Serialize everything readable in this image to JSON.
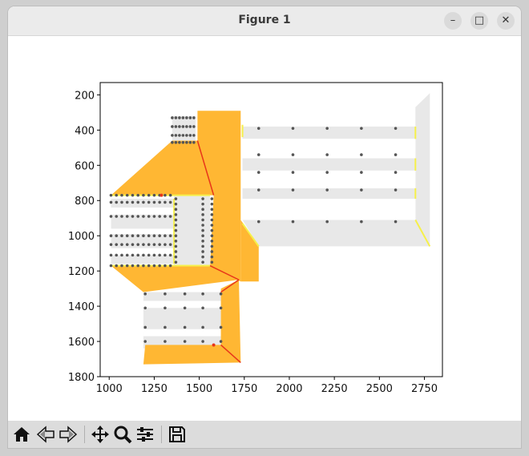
{
  "window": {
    "title": "Figure 1",
    "buttons": {
      "minimize": "–",
      "maximize": "□",
      "close": "✕"
    }
  },
  "toolbar": {
    "icons": [
      "home-icon",
      "back-arrow-icon",
      "forward-arrow-icon",
      "pan-icon",
      "zoom-icon",
      "configure-subplots-icon",
      "save-icon"
    ]
  },
  "colors": {
    "orange": "#FFB733",
    "red": "#E8351A",
    "yellow": "#F6F04A",
    "grey": "#E8E8E8",
    "dot": "#555555"
  },
  "chart_data": {
    "type": "scatter",
    "title": "",
    "xlabel": "",
    "ylabel": "",
    "xlim": [
      950,
      2850
    ],
    "ylim": [
      1800,
      130
    ],
    "y_inverted": true,
    "grid": false,
    "xticks": [
      1000,
      1250,
      1500,
      1750,
      2000,
      2250,
      2500,
      2750
    ],
    "yticks": [
      200,
      400,
      600,
      800,
      1000,
      1200,
      1400,
      1600,
      1800
    ],
    "xtick_labels": [
      "1000",
      "1250",
      "1500",
      "1750",
      "2000",
      "2250",
      "2500",
      "2750"
    ],
    "ytick_labels": [
      "200",
      "400",
      "600",
      "800",
      "1000",
      "1200",
      "1400",
      "1600",
      "1800"
    ],
    "grey_regions": [
      [
        [
          1740,
          380
        ],
        [
          2700,
          380
        ],
        [
          2700,
          450
        ],
        [
          1740,
          450
        ]
      ],
      [
        [
          1740,
          560
        ],
        [
          2700,
          560
        ],
        [
          2700,
          630
        ],
        [
          1740,
          630
        ]
      ],
      [
        [
          1740,
          730
        ],
        [
          2700,
          730
        ],
        [
          2700,
          790
        ],
        [
          1740,
          790
        ]
      ],
      [
        [
          1740,
          910
        ],
        [
          2700,
          910
        ],
        [
          2780,
          1060
        ],
        [
          1830,
          1060
        ]
      ],
      [
        [
          2700,
          270
        ],
        [
          2780,
          190
        ],
        [
          2780,
          1060
        ],
        [
          2700,
          910
        ]
      ],
      [
        [
          1010,
          790
        ],
        [
          1360,
          790
        ],
        [
          1360,
          1160
        ],
        [
          1010,
          1160
        ]
      ],
      [
        [
          1360,
          760
        ],
        [
          1560,
          760
        ],
        [
          1560,
          1170
        ],
        [
          1360,
          1170
        ]
      ],
      [
        [
          1350,
          320
        ],
        [
          1480,
          320
        ],
        [
          1480,
          460
        ],
        [
          1350,
          460
        ]
      ],
      [
        [
          1190,
          1320
        ],
        [
          1620,
          1320
        ],
        [
          1620,
          1640
        ],
        [
          1190,
          1640
        ]
      ]
    ],
    "white_lanes": [
      [
        [
          1010,
          840
        ],
        [
          1360,
          840
        ],
        [
          1360,
          880
        ],
        [
          1010,
          880
        ]
      ],
      [
        [
          1010,
          960
        ],
        [
          1360,
          960
        ],
        [
          1360,
          990
        ],
        [
          1010,
          990
        ]
      ],
      [
        [
          1010,
          1070
        ],
        [
          1360,
          1070
        ],
        [
          1360,
          1110
        ],
        [
          1010,
          1110
        ]
      ],
      [
        [
          1190,
          1370
        ],
        [
          1620,
          1370
        ],
        [
          1620,
          1410
        ],
        [
          1190,
          1410
        ]
      ],
      [
        [
          1190,
          1530
        ],
        [
          1620,
          1530
        ],
        [
          1620,
          1570
        ],
        [
          1190,
          1570
        ]
      ],
      [
        [
          1740,
          450
        ],
        [
          2700,
          450
        ],
        [
          2700,
          560
        ],
        [
          1740,
          560
        ]
      ],
      [
        [
          1740,
          630
        ],
        [
          2700,
          630
        ],
        [
          2700,
          730
        ],
        [
          1740,
          730
        ]
      ],
      [
        [
          1740,
          790
        ],
        [
          2700,
          790
        ],
        [
          2700,
          910
        ],
        [
          1740,
          910
        ]
      ]
    ],
    "orange_regions": [
      [
        [
          1010,
          770
        ],
        [
          1350,
          460
        ],
        [
          1490,
          460
        ],
        [
          1580,
          770
        ]
      ],
      [
        [
          1490,
          290
        ],
        [
          1730,
          290
        ],
        [
          1730,
          1260
        ],
        [
          1560,
          1170
        ],
        [
          1580,
          770
        ],
        [
          1490,
          460
        ]
      ],
      [
        [
          1730,
          910
        ],
        [
          1830,
          1060
        ],
        [
          1830,
          1260
        ],
        [
          1730,
          1260
        ]
      ],
      [
        [
          1010,
          1170
        ],
        [
          1560,
          1170
        ],
        [
          1720,
          1250
        ],
        [
          1190,
          1320
        ]
      ],
      [
        [
          1620,
          1300
        ],
        [
          1720,
          1250
        ],
        [
          1730,
          1720
        ],
        [
          1620,
          1620
        ]
      ],
      [
        [
          1200,
          1620
        ],
        [
          1620,
          1620
        ],
        [
          1730,
          1720
        ],
        [
          1190,
          1730
        ]
      ]
    ],
    "red_lines": [
      [
        [
          1490,
          460
        ],
        [
          1580,
          770
        ]
      ],
      [
        [
          1560,
          1170
        ],
        [
          1720,
          1250
        ]
      ],
      [
        [
          1720,
          1250
        ],
        [
          1620,
          1320
        ]
      ],
      [
        [
          1620,
          1620
        ],
        [
          1730,
          1720
        ]
      ]
    ],
    "yellow_lines": [
      [
        [
          1010,
          770
        ],
        [
          1560,
          770
        ]
      ],
      [
        [
          1360,
          790
        ],
        [
          1360,
          1160
        ]
      ],
      [
        [
          1010,
          1170
        ],
        [
          1560,
          1170
        ]
      ],
      [
        [
          1740,
          440
        ],
        [
          1740,
          370
        ]
      ],
      [
        [
          1740,
          930
        ],
        [
          1830,
          1060
        ]
      ],
      [
        [
          2700,
          910
        ],
        [
          2780,
          1060
        ]
      ],
      [
        [
          2700,
          380
        ],
        [
          2700,
          450
        ]
      ],
      [
        [
          2700,
          560
        ],
        [
          2700,
          630
        ]
      ],
      [
        [
          2700,
          730
        ],
        [
          2700,
          790
        ]
      ]
    ],
    "dot_groups": [
      {
        "xs": [
          1350,
          1370,
          1390,
          1410,
          1430,
          1450,
          1470
        ],
        "ys": [
          330,
          380,
          430,
          470
        ]
      },
      {
        "xs": [
          1010,
          1040,
          1070,
          1100,
          1130,
          1160,
          1190,
          1220,
          1250,
          1280,
          1310,
          1340
        ],
        "ys": [
          770,
          890,
          1000,
          1110,
          1170
        ]
      },
      {
        "xs": [
          1010,
          1040,
          1070,
          1100,
          1130,
          1160,
          1190,
          1220,
          1250,
          1280,
          1310,
          1340
        ],
        "ys": [
          810,
          1050
        ]
      },
      {
        "xs": [
          1370,
          1570
        ],
        "ys": [
          790,
          820,
          850,
          880,
          910,
          940,
          970,
          1000,
          1030,
          1060,
          1090,
          1120,
          1150
        ]
      },
      {
        "xs": [
          1520
        ],
        "ys": [
          790,
          820,
          850,
          880,
          910,
          940,
          970,
          1000,
          1030,
          1060,
          1090,
          1120,
          1150
        ]
      },
      {
        "xs": [
          1830,
          2020,
          2210,
          2400,
          2590
        ],
        "ys": [
          390,
          540,
          640,
          740,
          920
        ]
      },
      {
        "xs": [
          1200,
          1310,
          1420,
          1520,
          1620
        ],
        "ys": [
          1330,
          1410,
          1520,
          1600
        ]
      }
    ],
    "red_dots": [
      [
        1290,
        770
      ],
      [
        1580,
        1620
      ]
    ]
  }
}
